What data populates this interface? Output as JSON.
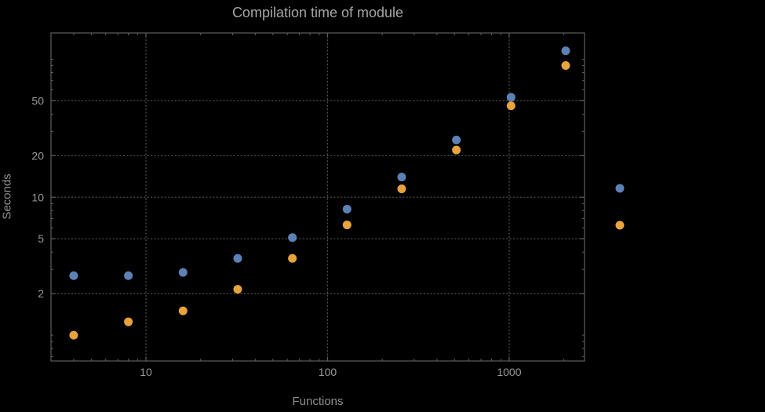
{
  "title": "Compilation time of module",
  "axis": {
    "xlabel": "Functions",
    "ylabel": "Seconds"
  },
  "colors": {
    "background": "#000000",
    "title_text": "#a6a6a4",
    "tick_text": "#999997",
    "frame": "#5e5e5e",
    "grid": "#4f4f4f",
    "series_blue": "#5e81b5",
    "series_orange": "#e8a33d"
  },
  "chart_data": {
    "type": "scatter",
    "title": "Compilation time of module",
    "xlabel": "Functions",
    "ylabel": "Seconds",
    "xscale": "log",
    "yscale": "log",
    "xlim": [
      3,
      2600
    ],
    "ylim": [
      0.65,
      155
    ],
    "grid": true,
    "legend_position": "right-outside",
    "x": [
      4,
      8,
      16,
      32,
      64,
      128,
      256,
      512,
      1024,
      2048
    ],
    "series": [
      {
        "name": "series-1-blue",
        "color": "#5e81b5",
        "values": [
          2.7,
          2.7,
          2.85,
          3.6,
          5.1,
          8.2,
          14,
          26,
          53,
          115
        ]
      },
      {
        "name": "series-2-orange",
        "color": "#e8a33d",
        "values": [
          1.0,
          1.25,
          1.5,
          2.15,
          3.6,
          6.3,
          11.5,
          22,
          46,
          90
        ]
      }
    ],
    "x_tick_labels": [
      10,
      100,
      1000
    ],
    "y_tick_labels": [
      2,
      5,
      10,
      20,
      50
    ]
  },
  "legend": {
    "markers": [
      {
        "name": "legend-marker-blue",
        "color": "#5e81b5",
        "label": ""
      },
      {
        "name": "legend-marker-orange",
        "color": "#e8a33d",
        "label": ""
      }
    ]
  }
}
